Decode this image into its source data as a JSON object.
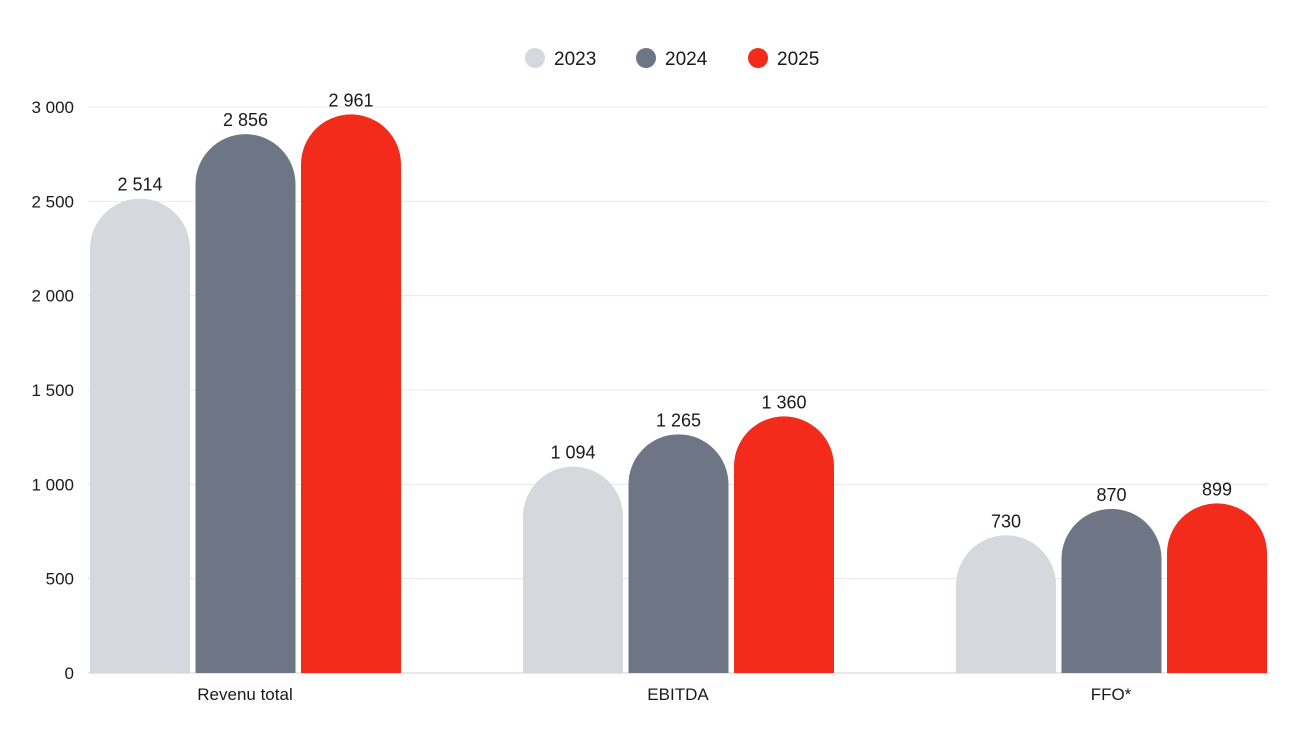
{
  "chart_data": {
    "type": "bar",
    "title": "",
    "xlabel": "",
    "ylabel": "",
    "categories": [
      "Revenu total",
      "EBITDA",
      "FFO*"
    ],
    "series": [
      {
        "name": "2023",
        "color": "#d5d8dd",
        "values": [
          2514,
          1094,
          730
        ],
        "labels": [
          "2 514",
          "1 094",
          "730"
        ]
      },
      {
        "name": "2024",
        "color": "#6e7585",
        "values": [
          2856,
          1265,
          870
        ],
        "labels": [
          "2 856",
          "1 265",
          "870"
        ]
      },
      {
        "name": "2025",
        "color": "#f22b1b",
        "values": [
          2961,
          1360,
          899
        ],
        "labels": [
          "2 961",
          "1 360",
          "899"
        ]
      }
    ],
    "ylim": [
      0,
      3000
    ],
    "yticks": [
      0,
      500,
      1000,
      1500,
      2000,
      2500,
      3000
    ],
    "ytick_labels": [
      "0",
      "500",
      "1 000",
      "1 500",
      "2 000",
      "2 500",
      "3 000"
    ],
    "grid": true,
    "legend_position": "top-center"
  }
}
